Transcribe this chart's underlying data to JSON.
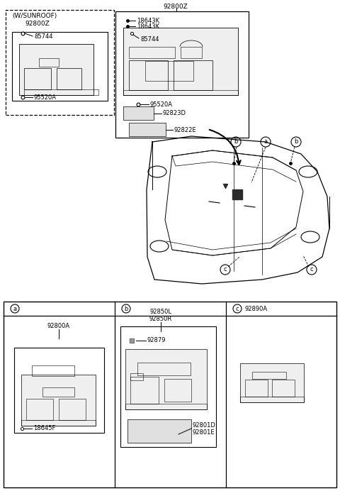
{
  "bg_color": "#ffffff",
  "line_color": "#000000",
  "text_color": "#000000",
  "sunroof_label": "(W/SUNROOF)",
  "sunroof_part": "92800Z",
  "sunroof_items": [
    "85744",
    "95520A"
  ],
  "main_part": "92800Z",
  "main_items": [
    "18643K",
    "18643K",
    "85744",
    "95520A",
    "92823D",
    "92822E"
  ],
  "sec_a_part": "92800A",
  "sec_a_items": [
    "18645F"
  ],
  "sec_b_part1": "92850L",
  "sec_b_part2": "92850R",
  "sec_b_items": [
    "92879",
    "92801D",
    "92801E"
  ],
  "sec_c_part": "92890A"
}
